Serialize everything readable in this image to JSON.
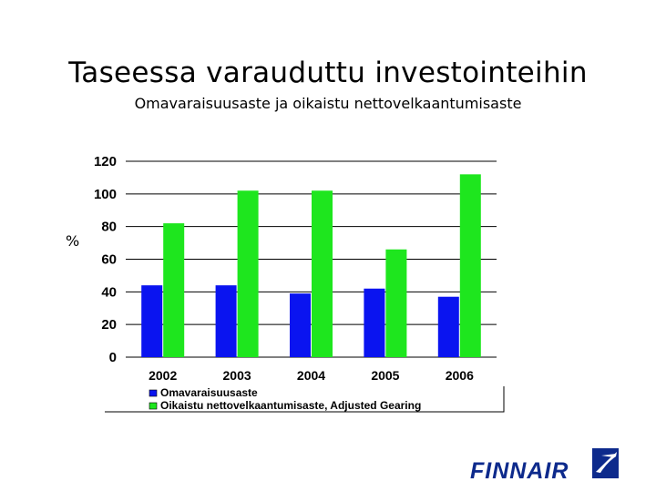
{
  "chart_data": {
    "type": "bar",
    "title": "Taseessa varauduttu investointeihin",
    "subtitle": "Omavaraisuusaste ja oikaistu nettovelkaantumisaste",
    "ylabel": "%",
    "xlabel": "",
    "categories": [
      "2002",
      "2003",
      "2004",
      "2005",
      "2006"
    ],
    "series": [
      {
        "name": "Omavaraisuusaste",
        "color": "#0a14f0",
        "values": [
          44,
          44,
          39,
          42,
          37
        ]
      },
      {
        "name": "Oikaistu nettovelkaantumisaste, Adjusted Gearing",
        "color": "#1ee61e",
        "values": [
          82,
          102,
          102,
          66,
          112
        ]
      }
    ],
    "ylim": [
      0,
      120
    ],
    "yticks": [
      0,
      20,
      40,
      60,
      80,
      100,
      120
    ],
    "grid": true,
    "legend": "bottom"
  },
  "brand": {
    "name": "FINNAIR",
    "color": "#0d2a8c"
  }
}
